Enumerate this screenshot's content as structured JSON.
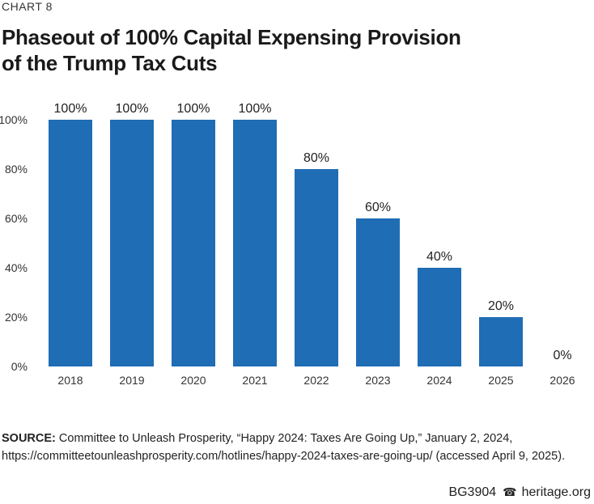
{
  "header": {
    "chart_label": "CHART 8",
    "title_line1": "Phaseout of 100% Capital Expensing Provision",
    "title_line2": "of the Trump Tax Cuts"
  },
  "chart_data": {
    "type": "bar",
    "title": "Phaseout of 100% Capital Expensing Provision of the Trump Tax Cuts",
    "categories": [
      "2018",
      "2019",
      "2020",
      "2021",
      "2022",
      "2023",
      "2024",
      "2025",
      "2026"
    ],
    "values": [
      100,
      100,
      100,
      100,
      80,
      60,
      40,
      20,
      0
    ],
    "data_labels": [
      "100%",
      "100%",
      "100%",
      "100%",
      "80%",
      "60%",
      "40%",
      "20%",
      "0%"
    ],
    "yticks": [
      0,
      20,
      40,
      60,
      80,
      100
    ],
    "ytick_labels": [
      "0%",
      "20%",
      "40%",
      "60%",
      "80%",
      "100%"
    ],
    "ylim": [
      0,
      100
    ],
    "xlabel": "",
    "ylabel": "",
    "grid": false,
    "bar_color": "#1f6db5"
  },
  "source": {
    "label": "SOURCE:",
    "text": "Committee to Unleash Prosperity, “Happy 2024: Taxes Are Going Up,” January 2, 2024, https://committeetounleashprosperity.com/hotlines/happy-2024-taxes-are-going-up/ (accessed April 9, 2025)."
  },
  "footer": {
    "code": "BG3904",
    "icon": "liberty-bell-icon",
    "site": "heritage.org"
  }
}
